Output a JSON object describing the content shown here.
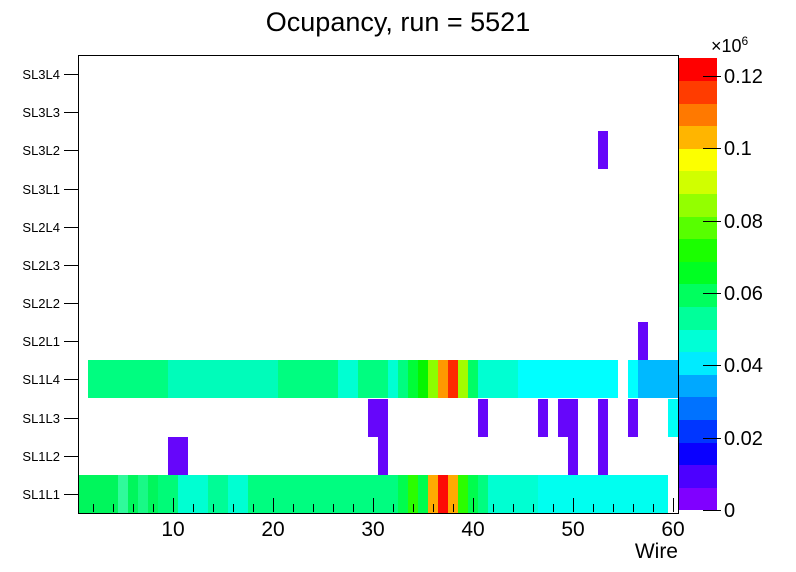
{
  "title": "Ocupancy, run = 5521",
  "x_axis": {
    "label": "Wire",
    "range": [
      0.5,
      60.5
    ],
    "major_ticks": [
      10,
      20,
      30,
      40,
      50,
      60
    ],
    "minor_step": 2
  },
  "y_axis": {
    "rows_bottom_to_top": [
      "SL1L1",
      "SL1L2",
      "SL1L3",
      "SL1L4",
      "SL2L1",
      "SL2L2",
      "SL2L3",
      "SL2L4",
      "SL3L1",
      "SL3L2",
      "SL3L3",
      "SL3L4"
    ]
  },
  "colorbar": {
    "exp_base": "×10",
    "exp_sup": "6",
    "zmin": 0,
    "zmax": 125000,
    "ticks": [
      {
        "v": 0,
        "label": "0"
      },
      {
        "v": 20000,
        "label": "0.02"
      },
      {
        "v": 40000,
        "label": "0.04"
      },
      {
        "v": 60000,
        "label": "0.06"
      },
      {
        "v": 80000,
        "label": "0.08"
      },
      {
        "v": 100000,
        "label": "0.1"
      },
      {
        "v": 120000,
        "label": "0.12"
      }
    ],
    "colors_bottom_to_top": [
      "#8000ff",
      "#4c00ff",
      "#0a00ff",
      "#0036ff",
      "#0072ff",
      "#00a8ff",
      "#00ebff",
      "#00ffd6",
      "#00ff9a",
      "#00ff5e",
      "#00ff22",
      "#1bff00",
      "#57ff00",
      "#93ff00",
      "#d0ff00",
      "#fcff00",
      "#ffb500",
      "#ff7900",
      "#ff3c00",
      "#ff0000"
    ]
  },
  "chart_data": {
    "type": "heatmap",
    "title": "Ocupancy, run = 5521",
    "xlabel": "Wire",
    "x_range": [
      0.5,
      60.5
    ],
    "rows_bottom_to_top": [
      "SL1L1",
      "SL1L2",
      "SL1L3",
      "SL1L4",
      "SL2L1",
      "SL2L2",
      "SL2L3",
      "SL2L4",
      "SL3L1",
      "SL3L2",
      "SL3L3",
      "SL3L4"
    ],
    "z_range": [
      0,
      125000
    ],
    "values_are_estimates": true,
    "segments": [
      {
        "row": "SL1L1",
        "w": [
          1,
          4
        ],
        "color": "#00f65c",
        "value": 54000
      },
      {
        "row": "SL1L1",
        "w": [
          5,
          5
        ],
        "color": "#30fa9b",
        "value": 48000
      },
      {
        "row": "SL1L1",
        "w": [
          6,
          6
        ],
        "color": "#00f65c",
        "value": 54000
      },
      {
        "row": "SL1L1",
        "w": [
          7,
          7
        ],
        "color": "#19f986",
        "value": 51000
      },
      {
        "row": "SL1L1",
        "w": [
          8,
          8
        ],
        "color": "#00f65c",
        "value": 54000
      },
      {
        "row": "SL1L1",
        "w": [
          9,
          10
        ],
        "color": "#00fb78",
        "value": 52000
      },
      {
        "row": "SL1L1",
        "w": [
          11,
          13
        ],
        "color": "#00ffd2",
        "value": 46000
      },
      {
        "row": "SL1L1",
        "w": [
          14,
          15
        ],
        "color": "#00fc96",
        "value": 50000
      },
      {
        "row": "SL1L1",
        "w": [
          16,
          17
        ],
        "color": "#00ffd2",
        "value": 46000
      },
      {
        "row": "SL1L1",
        "w": [
          18,
          32
        ],
        "color": "#00fd80",
        "value": 52000
      },
      {
        "row": "SL1L1",
        "w": [
          33,
          33
        ],
        "color": "#00fd4d",
        "value": 56000
      },
      {
        "row": "SL1L1",
        "w": [
          34,
          34
        ],
        "color": "#2bfd00",
        "value": 68000
      },
      {
        "row": "SL1L1",
        "w": [
          35,
          35
        ],
        "color": "#00fd4d",
        "value": 56000
      },
      {
        "row": "SL1L1",
        "w": [
          36,
          36
        ],
        "color": "#ffaa01",
        "value": 97000
      },
      {
        "row": "SL1L1",
        "w": [
          37,
          37
        ],
        "color": "#fd0b06",
        "value": 123000
      },
      {
        "row": "SL1L1",
        "w": [
          38,
          38
        ],
        "color": "#ffaa01",
        "value": 97000
      },
      {
        "row": "SL1L1",
        "w": [
          39,
          39
        ],
        "color": "#2bfd00",
        "value": 68000
      },
      {
        "row": "SL1L1",
        "w": [
          40,
          40
        ],
        "color": "#00fd4d",
        "value": 56000
      },
      {
        "row": "SL1L1",
        "w": [
          41,
          41
        ],
        "color": "#00fd80",
        "value": 52000
      },
      {
        "row": "SL1L1",
        "w": [
          42,
          46
        ],
        "color": "#00ffd2",
        "value": 46000
      },
      {
        "row": "SL1L1",
        "w": [
          47,
          59
        ],
        "color": "#00fff0",
        "value": 42000
      },
      {
        "row": "SL1L2",
        "w": [
          10,
          11
        ],
        "color": "#6606fa",
        "value": 4000
      },
      {
        "row": "SL1L2",
        "w": [
          31,
          31
        ],
        "color": "#6606fa",
        "value": 4000
      },
      {
        "row": "SL1L2",
        "w": [
          50,
          50
        ],
        "color": "#6606fa",
        "value": 4000
      },
      {
        "row": "SL1L2",
        "w": [
          53,
          53
        ],
        "color": "#6606fa",
        "value": 4000
      },
      {
        "row": "SL1L3",
        "w": [
          30,
          31
        ],
        "color": "#6606fa",
        "value": 4000
      },
      {
        "row": "SL1L3",
        "w": [
          41,
          41
        ],
        "color": "#6606fa",
        "value": 4000
      },
      {
        "row": "SL1L3",
        "w": [
          47,
          47
        ],
        "color": "#6606fa",
        "value": 4000
      },
      {
        "row": "SL1L3",
        "w": [
          49,
          50
        ],
        "color": "#6606fa",
        "value": 4000
      },
      {
        "row": "SL1L3",
        "w": [
          53,
          53
        ],
        "color": "#6606fa",
        "value": 4000
      },
      {
        "row": "SL1L3",
        "w": [
          56,
          56
        ],
        "color": "#6606fa",
        "value": 4000
      },
      {
        "row": "SL1L3",
        "w": [
          60,
          60
        ],
        "color": "#00fff7",
        "value": 40000
      },
      {
        "row": "SL1L4",
        "w": [
          2,
          9
        ],
        "color": "#00fd80",
        "value": 52000
      },
      {
        "row": "SL1L4",
        "w": [
          10,
          20
        ],
        "color": "#00fcba",
        "value": 48000
      },
      {
        "row": "SL1L4",
        "w": [
          21,
          26
        ],
        "color": "#00fd80",
        "value": 52000
      },
      {
        "row": "SL1L4",
        "w": [
          27,
          28
        ],
        "color": "#00ffd2",
        "value": 46000
      },
      {
        "row": "SL1L4",
        "w": [
          29,
          31
        ],
        "color": "#00fd80",
        "value": 52000
      },
      {
        "row": "SL1L4",
        "w": [
          32,
          32
        ],
        "color": "#00ffd2",
        "value": 46000
      },
      {
        "row": "SL1L4",
        "w": [
          33,
          33
        ],
        "color": "#00fd80",
        "value": 52000
      },
      {
        "row": "SL1L4",
        "w": [
          34,
          34
        ],
        "color": "#00fd38",
        "value": 58000
      },
      {
        "row": "SL1L4",
        "w": [
          35,
          35
        ],
        "color": "#06f500",
        "value": 64000
      },
      {
        "row": "SL1L4",
        "w": [
          36,
          36
        ],
        "color": "#8cfd00",
        "value": 74000
      },
      {
        "row": "SL1L4",
        "w": [
          37,
          37
        ],
        "color": "#ff9800",
        "value": 100000
      },
      {
        "row": "SL1L4",
        "w": [
          38,
          38
        ],
        "color": "#fd2a00",
        "value": 118000
      },
      {
        "row": "SL1L4",
        "w": [
          39,
          39
        ],
        "color": "#a0fd00",
        "value": 76000
      },
      {
        "row": "SL1L4",
        "w": [
          40,
          40
        ],
        "color": "#00fd66",
        "value": 54000
      },
      {
        "row": "SL1L4",
        "w": [
          41,
          44
        ],
        "color": "#00ffd2",
        "value": 46000
      },
      {
        "row": "SL1L4",
        "w": [
          45,
          54
        ],
        "color": "#00ffff",
        "value": 41000
      },
      {
        "row": "SL1L4",
        "w": [
          56,
          56
        ],
        "color": "#00ffff",
        "value": 41000
      },
      {
        "row": "SL1L4",
        "w": [
          57,
          60
        ],
        "color": "#00b9ff",
        "value": 33000
      },
      {
        "row": "SL2L1",
        "w": [
          57,
          57
        ],
        "color": "#6606fa",
        "value": 4000
      },
      {
        "row": "SL3L2",
        "w": [
          53,
          53
        ],
        "color": "#6606fa",
        "value": 4000
      }
    ]
  }
}
